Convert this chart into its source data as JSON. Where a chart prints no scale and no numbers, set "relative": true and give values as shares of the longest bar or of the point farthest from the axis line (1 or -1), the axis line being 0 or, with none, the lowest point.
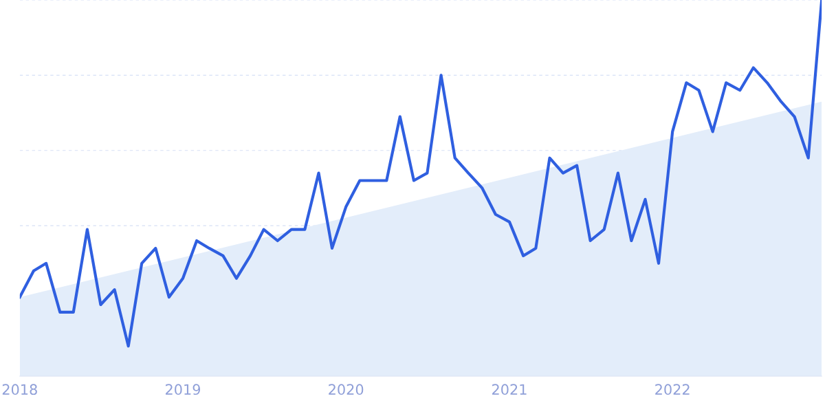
{
  "chart_data": {
    "type": "line",
    "relative": true,
    "grid": "y",
    "tick_labels": "x",
    "x": [
      "2018-01",
      "2018-02",
      "2018-03",
      "2018-04",
      "2018-05",
      "2018-06",
      "2018-07",
      "2018-08",
      "2018-09",
      "2018-10",
      "2018-11",
      "2018-12",
      "2019-01",
      "2019-02",
      "2019-03",
      "2019-04",
      "2019-05",
      "2019-06",
      "2019-07",
      "2019-08",
      "2019-09",
      "2019-10",
      "2019-11",
      "2019-12",
      "2020-01",
      "2020-02",
      "2020-03",
      "2020-04",
      "2020-05",
      "2020-06",
      "2020-07",
      "2020-08",
      "2020-09",
      "2020-10",
      "2020-11",
      "2020-12",
      "2021-01",
      "2021-02",
      "2021-03",
      "2021-04",
      "2021-05",
      "2021-06",
      "2021-07",
      "2021-08",
      "2021-09",
      "2021-10",
      "2021-11",
      "2021-12",
      "2022-01",
      "2022-02",
      "2022-03",
      "2022-04",
      "2022-05",
      "2022-06",
      "2022-07",
      "2022-08",
      "2022-09",
      "2022-10",
      "2022-11",
      "2022-12"
    ],
    "xlim": [
      "2018-01",
      "2022-12"
    ],
    "xticks": [
      "2018",
      "2019",
      "2020",
      "2021",
      "2022"
    ],
    "series": [
      {
        "type": "area",
        "color": "#e3edfa",
        "x": [
          "2018-01",
          "2022-12"
        ],
        "values": [
          0.21,
          0.73
        ]
      },
      {
        "color": "#2f5fe0",
        "values": [
          0.21,
          0.28,
          0.3,
          0.17,
          0.17,
          0.39,
          0.19,
          0.23,
          0.08,
          0.3,
          0.34,
          0.21,
          0.26,
          0.36,
          0.34,
          0.32,
          0.26,
          0.32,
          0.39,
          0.36,
          0.39,
          0.39,
          0.54,
          0.34,
          0.45,
          0.52,
          0.52,
          0.52,
          0.69,
          0.52,
          0.54,
          0.8,
          0.58,
          0.54,
          0.5,
          0.43,
          0.41,
          0.32,
          0.34,
          0.58,
          0.54,
          0.56,
          0.36,
          0.39,
          0.54,
          0.36,
          0.47,
          0.3,
          0.65,
          0.78,
          0.76,
          0.65,
          0.78,
          0.76,
          0.82,
          0.78,
          0.73,
          0.69,
          0.58,
          1
        ]
      }
    ]
  }
}
